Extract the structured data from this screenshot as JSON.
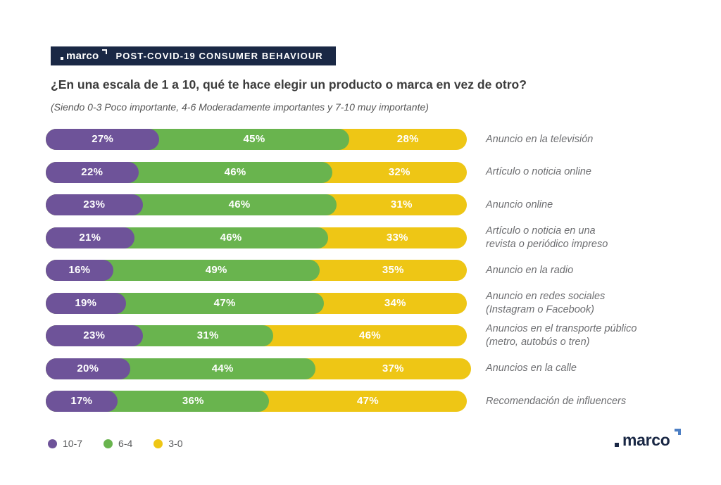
{
  "header": {
    "logo_text": "marco",
    "banner_title": "POST-COVID-19 CONSUMER BEHAVIOUR",
    "banner_bg": "#1a2845"
  },
  "question": {
    "title": "¿En una escala de 1 a 10, qué te hace elegir un producto o marca en vez de otro?",
    "subtitle": "(Siendo 0-3 Poco importante, 4-6 Moderadamente importantes y 7-10 muy importante)"
  },
  "colors": {
    "purple": "#6e5399",
    "green": "#69b44e",
    "yellow": "#eec615",
    "navy": "#1a2845",
    "footer_arrow_blue": "#4d7fc4",
    "category_label_gray": "#6d6e71"
  },
  "chart_data": {
    "type": "bar",
    "orientation": "horizontal",
    "stacked": true,
    "unit": "%",
    "value_labels": "inside-white",
    "legend_position": "bottom-left",
    "xlim": [
      0,
      100
    ],
    "categories": [
      "Anuncio en la televisión",
      "Artículo o noticia online",
      "Anuncio online",
      "Artículo o noticia en una\nrevista o periódico impreso",
      "Anuncio en la radio",
      "Anuncio en redes sociales\n(Instagram o Facebook)",
      "Anuncios en el transporte público\n(metro, autobús o tren)",
      "Anuncios en la calle",
      "Recomendación de influencers"
    ],
    "series": [
      {
        "name": "10-7",
        "color": "#6e5399",
        "values": [
          27,
          22,
          23,
          21,
          16,
          19,
          23,
          20,
          17
        ]
      },
      {
        "name": "6-4",
        "color": "#69b44e",
        "values": [
          45,
          46,
          46,
          46,
          49,
          47,
          31,
          44,
          36
        ]
      },
      {
        "name": "3-0",
        "color": "#eec615",
        "values": [
          28,
          32,
          31,
          33,
          35,
          34,
          46,
          37,
          47
        ]
      }
    ]
  },
  "legend": {
    "items": [
      {
        "label": "10-7",
        "color": "#6e5399"
      },
      {
        "label": "6-4",
        "color": "#69b44e"
      },
      {
        "label": "3-0",
        "color": "#eec615"
      }
    ]
  },
  "footer": {
    "logo_text": "marco"
  }
}
